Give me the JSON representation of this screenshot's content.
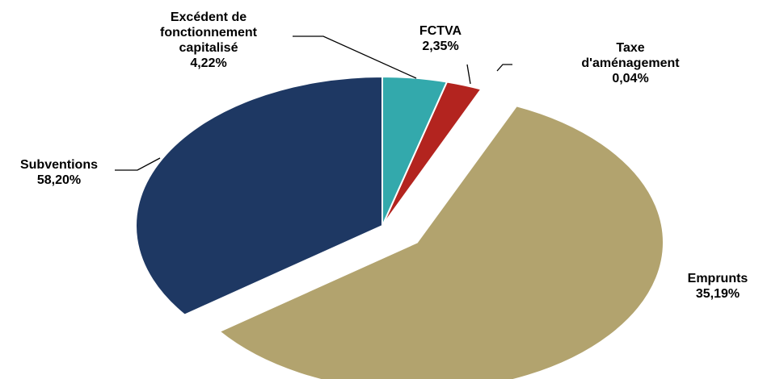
{
  "chart_data": {
    "type": "pie",
    "categories": [
      "Excédent de fonctionnement capitalisé",
      "FCTVA",
      "Taxe d'aménagement",
      "Subventions",
      "Emprunts"
    ],
    "values": [
      4.22,
      2.35,
      0.04,
      58.2,
      35.19
    ],
    "value_labels": [
      "4,22%",
      "2,35%",
      "0,04%",
      "58,20%",
      "35,19%"
    ],
    "colors": [
      "#33a9ac",
      "#b3241f",
      "#b3241f",
      "#b2a36e",
      "#1e3863"
    ]
  }
}
